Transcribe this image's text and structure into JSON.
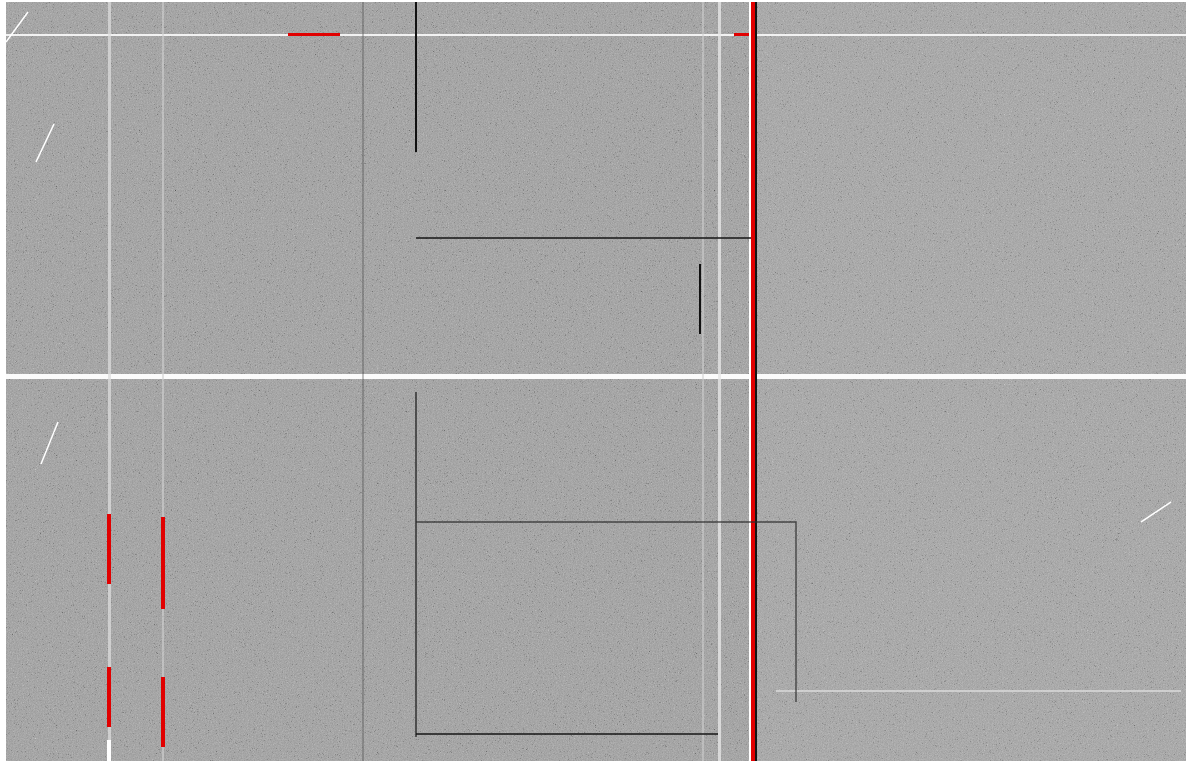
{
  "image": {
    "kind": "detector-frame-mask-overlay",
    "background_color": "#7d7d7d",
    "dark_pixel_color": "#111111",
    "bright_pixel_color": "#ffffff",
    "flag_color": "#e10000",
    "noise": true
  },
  "features": {
    "bright_rows": 2,
    "bright_columns": 4,
    "dark_columns": 4,
    "red_flagged_columns": 4,
    "rectangular_outline_regions": 2
  }
}
